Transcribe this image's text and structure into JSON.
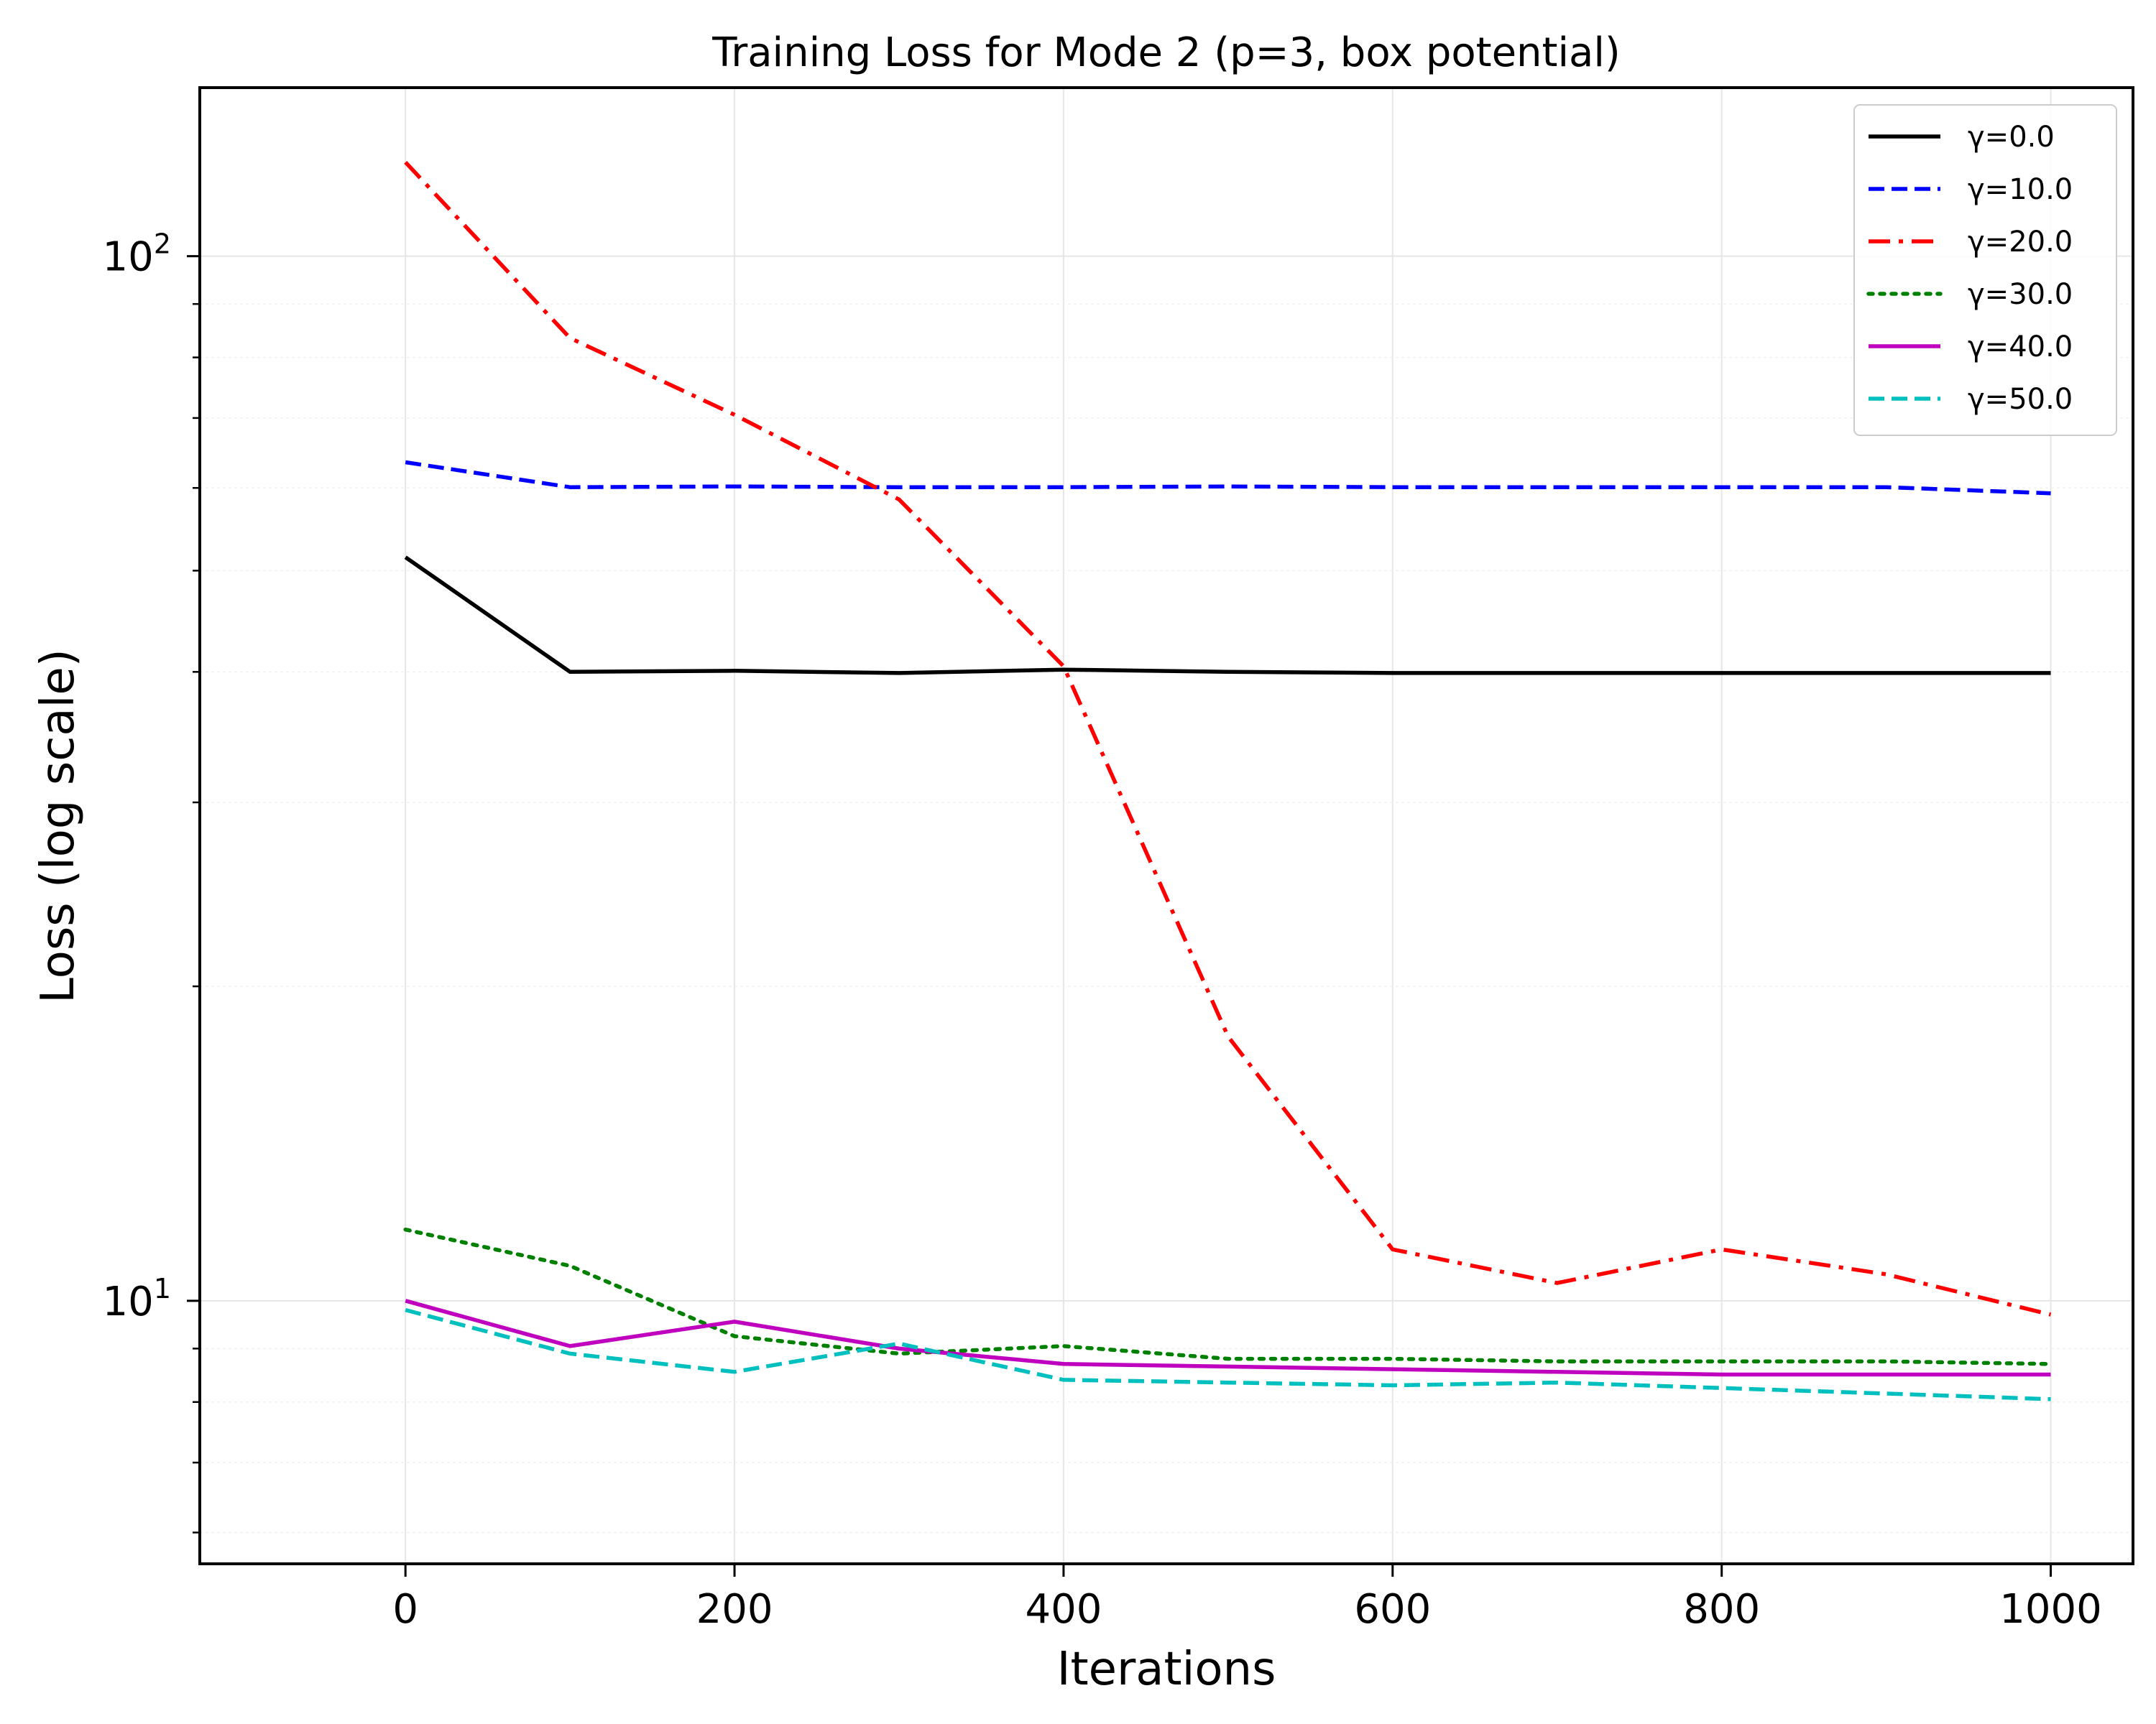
{
  "chart_data": {
    "type": "line",
    "title": "Training Loss for Mode 2 (p=3, box potential)",
    "xlabel": "Iterations",
    "ylabel": "Loss (log scale)",
    "yscale": "log",
    "xlim": [
      -125,
      1050
    ],
    "ylim": [
      5.6,
      145
    ],
    "x_ticks": [
      0,
      200,
      400,
      600,
      800,
      1000
    ],
    "y_ticks": [
      {
        "value": 10,
        "base": "10",
        "exp": "1"
      },
      {
        "value": 100,
        "base": "10",
        "exp": "2"
      }
    ],
    "grid": true,
    "legend_position": "top-right",
    "x": [
      0,
      100,
      200,
      300,
      400,
      500,
      600,
      700,
      800,
      900,
      1000
    ],
    "series": [
      {
        "name": "γ=0.0",
        "color": "#000000",
        "dash": "solid",
        "values": [
          51.5,
          40.0,
          40.1,
          39.9,
          40.2,
          40.0,
          39.9,
          39.9,
          39.9,
          39.9,
          39.9
        ]
      },
      {
        "name": "γ=10.0",
        "color": "#0000ff",
        "dash": "dashed",
        "values": [
          63.5,
          60.1,
          60.2,
          60.1,
          60.1,
          60.2,
          60.1,
          60.1,
          60.1,
          60.1,
          59.3
        ]
      },
      {
        "name": "γ=20.0",
        "color": "#ff0000",
        "dash": "dashdot",
        "values": [
          123,
          83.5,
          70.5,
          58.5,
          40.5,
          17.9,
          11.2,
          10.4,
          11.2,
          10.6,
          9.7
        ]
      },
      {
        "name": "γ=30.0",
        "color": "#008000",
        "dash": "dotted",
        "values": [
          11.7,
          10.8,
          9.25,
          8.9,
          9.05,
          8.8,
          8.8,
          8.75,
          8.75,
          8.75,
          8.7
        ]
      },
      {
        "name": "γ=40.0",
        "color": "#bf00bf",
        "dash": "solid",
        "values": [
          10.0,
          9.05,
          9.55,
          9.0,
          8.7,
          8.65,
          8.6,
          8.55,
          8.5,
          8.5,
          8.5
        ]
      },
      {
        "name": "γ=50.0",
        "color": "#00bfbf",
        "dash": "dashed",
        "values": [
          9.8,
          8.9,
          8.55,
          9.1,
          8.4,
          8.35,
          8.3,
          8.35,
          8.25,
          8.15,
          8.05
        ]
      }
    ]
  }
}
